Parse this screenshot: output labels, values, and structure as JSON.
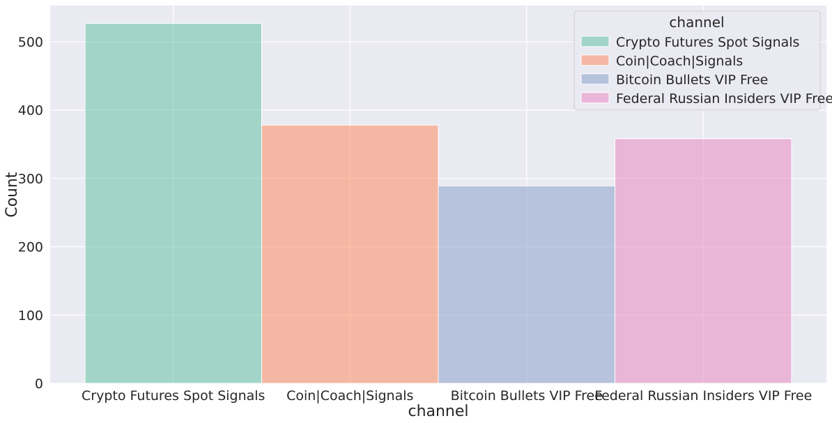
{
  "chart_data": {
    "type": "bar",
    "categories": [
      "Crypto Futures Spot Signals",
      "Coin|Coach|Signals",
      "Bitcoin Bullets VIP Free",
      "Federal Russian Insiders VIP Free"
    ],
    "values": [
      527,
      378,
      289,
      358
    ],
    "colors": [
      "#66c2a5",
      "#fc8d62",
      "#8da0cb",
      "#e78ac3"
    ],
    "xlabel": "channel",
    "ylabel": "Count",
    "ylim": [
      0,
      553
    ],
    "yticks": [
      0,
      100,
      200,
      300,
      400,
      500
    ],
    "grid": true,
    "legend": {
      "title": "channel",
      "placement": "top-right",
      "entries": [
        "Crypto Futures Spot Signals",
        "Coin|Coach|Signals",
        "Bitcoin Bullets VIP Free",
        "Federal Russian Insiders VIP Free"
      ]
    }
  }
}
